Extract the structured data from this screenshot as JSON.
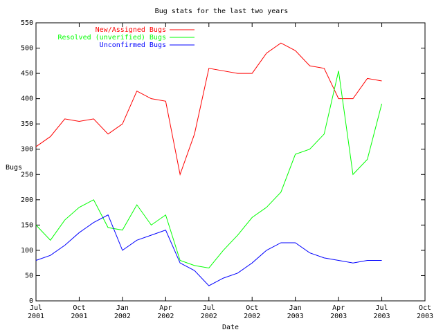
{
  "chart_data": {
    "type": "line",
    "title": "Bug stats for the last two years",
    "x_label": "Date",
    "y_label": "Bugs",
    "x": [
      "2001-07",
      "2001-08",
      "2001-09",
      "2001-10",
      "2001-11",
      "2001-12",
      "2002-01",
      "2002-02",
      "2002-03",
      "2002-04",
      "2002-05",
      "2002-06",
      "2002-07",
      "2002-08",
      "2002-09",
      "2002-10",
      "2002-11",
      "2002-12",
      "2003-01",
      "2003-02",
      "2003-03",
      "2003-04",
      "2003-05",
      "2003-06",
      "2003-07"
    ],
    "series": [
      {
        "name": "New/Assigned Bugs",
        "color": "#ff0000",
        "values": [
          305,
          325,
          360,
          355,
          360,
          330,
          350,
          415,
          400,
          395,
          250,
          330,
          460,
          455,
          450,
          450,
          490,
          510,
          495,
          465,
          460,
          400,
          400,
          440,
          435
        ]
      },
      {
        "name": "Resolved (unverified) Bugs",
        "color": "#00ff00",
        "values": [
          150,
          120,
          160,
          185,
          200,
          145,
          140,
          190,
          150,
          170,
          80,
          70,
          65,
          100,
          130,
          165,
          185,
          215,
          290,
          300,
          330,
          455,
          250,
          280,
          390
        ]
      },
      {
        "name": "Unconfirmed Bugs",
        "color": "#0000ff",
        "values": [
          80,
          90,
          110,
          135,
          155,
          170,
          100,
          120,
          130,
          140,
          75,
          60,
          30,
          45,
          55,
          75,
          100,
          115,
          115,
          95,
          85,
          80,
          75,
          80,
          80
        ]
      }
    ],
    "xlim": [
      "2001-07",
      "2003-10"
    ],
    "xticks": [
      {
        "value": "2001-07",
        "label": "Jul\n2001"
      },
      {
        "value": "2001-10",
        "label": "Oct\n2001"
      },
      {
        "value": "2002-01",
        "label": "Jan\n2002"
      },
      {
        "value": "2002-04",
        "label": "Apr\n2002"
      },
      {
        "value": "2002-07",
        "label": "Jul\n2002"
      },
      {
        "value": "2002-10",
        "label": "Oct\n2002"
      },
      {
        "value": "2003-01",
        "label": "Jan\n2003"
      },
      {
        "value": "2003-04",
        "label": "Apr\n2003"
      },
      {
        "value": "2003-07",
        "label": "Jul\n2003"
      },
      {
        "value": "2003-10",
        "label": "Oct\n2003"
      }
    ],
    "ylim": [
      0,
      550
    ],
    "yticks": [
      0,
      50,
      100,
      150,
      200,
      250,
      300,
      350,
      400,
      450,
      500,
      550
    ],
    "grid": false,
    "legend": "top-left"
  }
}
